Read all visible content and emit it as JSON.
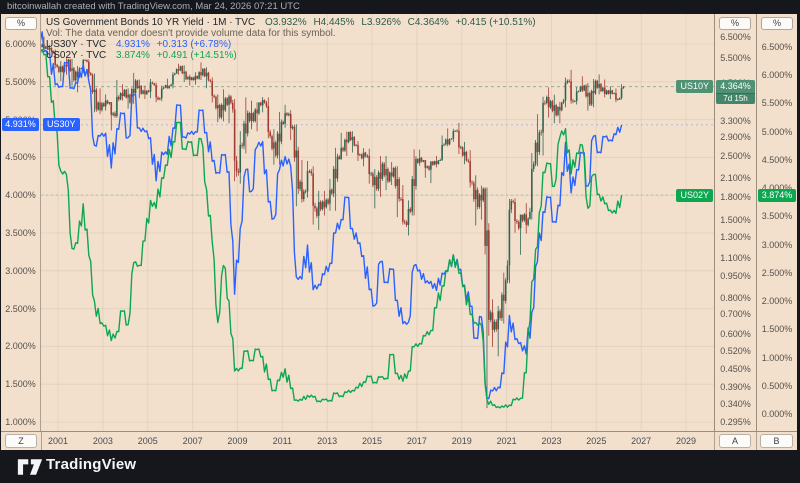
{
  "top_bar": {
    "attribution": "bitcoinwallah created with TradingView.com, Mar 24, 2026 07:21 UTC"
  },
  "legend": {
    "main": {
      "title_full": "US Government Bonds 10 YR Yield · 1M · TVC",
      "open": "O3.932%",
      "high": "H4.445%",
      "low": "L3.926%",
      "close": "C4.364%",
      "change": "+0.415 (+10.51%)"
    },
    "vol_note": "Vol: The data vendor doesn't provide volume data for this symbol.",
    "us30y": {
      "symbol_full": "US30Y · TVC",
      "value": "4.931%",
      "change": "+0.313 (+6.78%)"
    },
    "us02y": {
      "symbol_full": "US02Y · TVC",
      "value": "3.874%",
      "change": "+0.491 (+14.51%)"
    }
  },
  "floating_labels": {
    "us30y": "US30Y",
    "us10y": "US10Y",
    "us02y": "US02Y"
  },
  "axes": {
    "left": {
      "unit_button": "%",
      "badge": {
        "text": "4.931%",
        "value": 4.931
      },
      "ticks": [
        {
          "t": "6.000%",
          "v": 6.0
        },
        {
          "t": "5.500%",
          "v": 5.5
        },
        {
          "t": "5.000%",
          "v": 5.0
        },
        {
          "t": "4.500%",
          "v": 4.5
        },
        {
          "t": "4.000%",
          "v": 4.0
        },
        {
          "t": "3.500%",
          "v": 3.5
        },
        {
          "t": "3.000%",
          "v": 3.0
        },
        {
          "t": "2.500%",
          "v": 2.5
        },
        {
          "t": "2.000%",
          "v": 2.0
        },
        {
          "t": "1.500%",
          "v": 1.5
        },
        {
          "t": "1.000%",
          "v": 1.0
        }
      ]
    },
    "inner_right": {
      "unit_button": "%",
      "badge": {
        "text": "4.364%",
        "value": 4.364,
        "countdown": "7d 15h"
      },
      "ticks": [
        {
          "t": "6.500%",
          "v": 6.5
        },
        {
          "t": "5.500%",
          "v": 5.5
        },
        {
          "t": "4.500%",
          "v": 4.5
        },
        {
          "t": "3.900%",
          "v": 3.9
        },
        {
          "t": "3.300%",
          "v": 3.3
        },
        {
          "t": "2.900%",
          "v": 2.9
        },
        {
          "t": "2.500%",
          "v": 2.5
        },
        {
          "t": "2.100%",
          "v": 2.1
        },
        {
          "t": "1.800%",
          "v": 1.8
        },
        {
          "t": "1.500%",
          "v": 1.5
        },
        {
          "t": "1.300%",
          "v": 1.3
        },
        {
          "t": "1.100%",
          "v": 1.1
        },
        {
          "t": "0.950%",
          "v": 0.95
        },
        {
          "t": "0.800%",
          "v": 0.8
        },
        {
          "t": "0.700%",
          "v": 0.7
        },
        {
          "t": "0.600%",
          "v": 0.6
        },
        {
          "t": "0.520%",
          "v": 0.52
        },
        {
          "t": "0.450%",
          "v": 0.45
        },
        {
          "t": "0.390%",
          "v": 0.39
        },
        {
          "t": "0.340%",
          "v": 0.34
        },
        {
          "t": "0.295%",
          "v": 0.295
        }
      ]
    },
    "outer_right": {
      "unit_button": "%",
      "badge": {
        "text": "3.874%",
        "value": 3.874
      },
      "ticks": [
        {
          "t": "6.500%",
          "v": 6.5
        },
        {
          "t": "6.000%",
          "v": 6.0
        },
        {
          "t": "5.500%",
          "v": 5.5
        },
        {
          "t": "5.000%",
          "v": 5.0
        },
        {
          "t": "4.500%",
          "v": 4.5
        },
        {
          "t": "4.000%",
          "v": 4.0
        },
        {
          "t": "3.500%",
          "v": 3.5
        },
        {
          "t": "3.000%",
          "v": 3.0
        },
        {
          "t": "2.500%",
          "v": 2.5
        },
        {
          "t": "2.000%",
          "v": 2.0
        },
        {
          "t": "1.500%",
          "v": 1.5
        },
        {
          "t": "1.000%",
          "v": 1.0
        },
        {
          "t": "0.500%",
          "v": 0.5
        },
        {
          "t": "0.000%",
          "v": 0.0
        }
      ]
    },
    "time": {
      "button_left": "Z",
      "button_a": "A",
      "button_b": "B",
      "years": [
        2001,
        2003,
        2005,
        2007,
        2009,
        2011,
        2013,
        2015,
        2017,
        2019,
        2021,
        2023,
        2025,
        2027,
        2029
      ]
    }
  },
  "footer": {
    "brand": "TradingView"
  },
  "colors": {
    "background": "#f2e0cd",
    "frame": "#15171c",
    "blue": "#2962ff",
    "green": "#0ca750",
    "sage": "#4e9173",
    "candle_up": "#2e6450",
    "candle_down": "#a23b32",
    "grid": "rgba(60,45,25,0.07)"
  },
  "chart_data": {
    "type": "mixed",
    "title": "US Government Bonds 10 YR Yield",
    "x_axis": {
      "start": 2000,
      "end": 2030,
      "tick_years": [
        2001,
        2003,
        2005,
        2007,
        2009,
        2011,
        2013,
        2015,
        2017,
        2019,
        2021,
        2023,
        2025,
        2027,
        2029
      ]
    },
    "x_start": 2000.125,
    "x_step": 0.25,
    "scales": {
      "left_linear": {
        "series": "US30Y",
        "min": 0.88,
        "max": 6.29,
        "last_price": 4.931
      },
      "right_log_A": {
        "series": "US10Y",
        "min": 0.274,
        "max": 7.33,
        "last_price": 4.364,
        "bar_countdown": "7d 15h"
      },
      "right_linear_B": {
        "series": "US02Y",
        "min": -0.3,
        "max": 6.94,
        "last_price": 3.874
      }
    },
    "series": [
      {
        "name": "US10Y",
        "type": "candlestick",
        "scale": "right_log_A",
        "interval": "quarterly-approx",
        "last_bar": {
          "open": 3.932,
          "high": 4.445,
          "low": 3.926,
          "close": 4.364,
          "change": "+0.415 (+10.51%)"
        },
        "ohlc": [
          [
            6.45,
            6.6,
            6.26,
            6.0
          ],
          [
            6.0,
            6.52,
            5.9,
            6.03
          ],
          [
            6.03,
            6.1,
            5.64,
            5.8
          ],
          [
            5.8,
            5.88,
            5.05,
            5.12
          ],
          [
            5.12,
            5.35,
            4.56,
            4.92
          ],
          [
            4.92,
            5.48,
            4.8,
            5.42
          ],
          [
            5.42,
            5.45,
            4.4,
            4.59
          ],
          [
            4.59,
            5.15,
            4.17,
            5.05
          ],
          [
            5.05,
            5.45,
            4.85,
            5.4
          ],
          [
            5.4,
            5.43,
            4.7,
            4.8
          ],
          [
            4.8,
            4.85,
            3.55,
            3.63
          ],
          [
            3.63,
            4.3,
            3.5,
            3.82
          ],
          [
            3.82,
            4.1,
            3.6,
            3.81
          ],
          [
            3.81,
            3.85,
            3.07,
            3.52
          ],
          [
            3.52,
            4.6,
            3.4,
            3.94
          ],
          [
            3.94,
            4.45,
            3.9,
            4.25
          ],
          [
            4.25,
            4.3,
            3.65,
            3.84
          ],
          [
            3.84,
            4.87,
            3.8,
            4.58
          ],
          [
            4.58,
            4.62,
            3.98,
            4.12
          ],
          [
            4.12,
            4.4,
            3.95,
            4.22
          ],
          [
            4.22,
            4.64,
            3.98,
            4.48
          ],
          [
            4.48,
            4.5,
            3.85,
            3.94
          ],
          [
            3.94,
            4.4,
            3.88,
            4.33
          ],
          [
            4.33,
            4.65,
            4.29,
            4.39
          ],
          [
            4.39,
            4.9,
            4.3,
            4.85
          ],
          [
            4.85,
            5.24,
            4.8,
            5.14
          ],
          [
            5.14,
            5.18,
            4.53,
            4.63
          ],
          [
            4.63,
            4.8,
            4.4,
            4.7
          ],
          [
            4.7,
            4.9,
            4.43,
            4.65
          ],
          [
            4.65,
            5.3,
            4.6,
            5.03
          ],
          [
            5.03,
            5.1,
            4.31,
            4.59
          ],
          [
            4.59,
            4.7,
            3.84,
            4.02
          ],
          [
            4.02,
            4.1,
            3.28,
            3.41
          ],
          [
            3.41,
            4.27,
            3.3,
            3.97
          ],
          [
            3.97,
            4.1,
            3.25,
            3.83
          ],
          [
            3.83,
            3.95,
            2.04,
            2.21
          ],
          [
            2.21,
            3.05,
            2.0,
            2.71
          ],
          [
            2.71,
            4.0,
            2.55,
            3.53
          ],
          [
            3.53,
            3.9,
            3.1,
            3.31
          ],
          [
            3.31,
            3.85,
            3.05,
            3.84
          ],
          [
            3.84,
            4.01,
            3.55,
            3.83
          ],
          [
            3.83,
            4.0,
            2.88,
            2.93
          ],
          [
            2.93,
            3.1,
            2.33,
            2.51
          ],
          [
            2.51,
            3.56,
            2.33,
            3.29
          ],
          [
            3.29,
            3.77,
            3.14,
            3.47
          ],
          [
            3.47,
            3.61,
            2.84,
            3.16
          ],
          [
            3.16,
            3.22,
            1.67,
            1.92
          ],
          [
            1.92,
            2.42,
            1.72,
            1.88
          ],
          [
            1.88,
            2.4,
            1.79,
            2.21
          ],
          [
            2.21,
            2.3,
            1.44,
            1.64
          ],
          [
            1.64,
            1.89,
            1.38,
            1.63
          ],
          [
            1.63,
            1.89,
            1.55,
            1.76
          ],
          [
            1.76,
            2.08,
            1.61,
            1.85
          ],
          [
            1.85,
            2.67,
            1.61,
            2.49
          ],
          [
            2.49,
            3.01,
            2.47,
            2.61
          ],
          [
            2.61,
            3.04,
            2.5,
            3.03
          ],
          [
            3.03,
            3.05,
            2.57,
            2.72
          ],
          [
            2.72,
            2.82,
            2.4,
            2.53
          ],
          [
            2.53,
            2.66,
            2.3,
            2.49
          ],
          [
            2.49,
            2.65,
            2.0,
            2.17
          ],
          [
            2.17,
            2.25,
            1.64,
            1.92
          ],
          [
            1.92,
            2.5,
            1.8,
            2.35
          ],
          [
            2.35,
            2.5,
            1.9,
            2.04
          ],
          [
            2.04,
            2.38,
            1.98,
            2.27
          ],
          [
            2.27,
            2.3,
            1.53,
            1.77
          ],
          [
            1.77,
            1.98,
            1.44,
            1.47
          ],
          [
            1.47,
            1.75,
            1.32,
            1.6
          ],
          [
            1.6,
            2.64,
            1.55,
            2.44
          ],
          [
            2.44,
            2.63,
            2.31,
            2.39
          ],
          [
            2.39,
            2.42,
            2.1,
            2.3
          ],
          [
            2.3,
            2.4,
            2.01,
            2.33
          ],
          [
            2.33,
            2.5,
            2.28,
            2.41
          ],
          [
            2.41,
            2.95,
            2.4,
            2.74
          ],
          [
            2.74,
            3.12,
            2.7,
            2.86
          ],
          [
            2.86,
            3.11,
            2.8,
            3.06
          ],
          [
            3.06,
            3.26,
            2.54,
            2.68
          ],
          [
            2.68,
            2.8,
            2.34,
            2.41
          ],
          [
            2.41,
            2.62,
            1.94,
            2.01
          ],
          [
            2.01,
            2.14,
            1.43,
            1.66
          ],
          [
            1.66,
            1.97,
            1.5,
            1.92
          ],
          [
            1.92,
            1.94,
            0.33,
            0.67
          ],
          [
            0.67,
            0.79,
            0.54,
            0.66
          ],
          [
            0.66,
            0.75,
            0.5,
            0.68
          ],
          [
            0.68,
            0.98,
            0.65,
            0.92
          ],
          [
            0.92,
            1.77,
            0.9,
            1.74
          ],
          [
            1.74,
            1.78,
            1.35,
            1.47
          ],
          [
            1.47,
            1.56,
            1.13,
            1.49
          ],
          [
            1.49,
            1.71,
            1.34,
            1.51
          ],
          [
            1.51,
            2.56,
            1.5,
            2.34
          ],
          [
            2.34,
            3.5,
            2.3,
            3.02
          ],
          [
            3.02,
            4.02,
            2.51,
            3.83
          ],
          [
            3.83,
            4.34,
            3.4,
            3.88
          ],
          [
            3.88,
            4.09,
            3.25,
            3.47
          ],
          [
            3.47,
            3.86,
            3.25,
            3.84
          ],
          [
            3.84,
            4.69,
            3.7,
            4.57
          ],
          [
            4.57,
            4.99,
            3.8,
            3.88
          ],
          [
            3.88,
            4.35,
            3.78,
            4.2
          ],
          [
            4.2,
            4.74,
            4.18,
            4.4
          ],
          [
            4.4,
            4.49,
            3.6,
            3.78
          ],
          [
            3.78,
            4.64,
            3.7,
            4.57
          ],
          [
            4.57,
            4.81,
            4.1,
            4.21
          ],
          [
            4.21,
            4.62,
            4.0,
            4.23
          ],
          [
            4.23,
            4.37,
            3.95,
            4.12
          ],
          [
            4.12,
            4.3,
            3.85,
            3.95
          ],
          [
            3.93,
            4.45,
            3.93,
            4.36
          ]
        ]
      },
      {
        "name": "US30Y",
        "type": "line",
        "scale": "left_linear",
        "last_value": 4.931,
        "change": "+0.313 (+6.78%)",
        "values": [
          6.29,
          5.9,
          5.88,
          5.46,
          5.44,
          5.75,
          5.42,
          5.48,
          5.73,
          5.51,
          4.66,
          4.78,
          4.82,
          4.36,
          4.88,
          5.08,
          4.76,
          5.33,
          4.89,
          4.84,
          4.76,
          4.19,
          4.57,
          4.54,
          4.89,
          5.19,
          4.77,
          4.81,
          4.84,
          5.12,
          4.83,
          4.45,
          4.3,
          4.53,
          4.31,
          2.69,
          3.56,
          4.34,
          4.05,
          4.64,
          4.71,
          3.91,
          3.69,
          4.34,
          4.51,
          4.38,
          2.92,
          2.89,
          3.34,
          2.75,
          2.82,
          2.95,
          3.1,
          3.5,
          3.68,
          3.97,
          3.56,
          3.36,
          3.2,
          2.75,
          2.54,
          3.12,
          2.85,
          3.02,
          2.61,
          2.3,
          2.32,
          3.07,
          3.01,
          2.84,
          2.86,
          2.74,
          2.97,
          2.99,
          3.21,
          3.01,
          2.81,
          2.53,
          2.11,
          2.39,
          1.32,
          1.41,
          1.46,
          1.64,
          2.41,
          2.09,
          2.05,
          1.9,
          2.45,
          3.12,
          3.78,
          3.97,
          3.65,
          3.86,
          4.7,
          4.03,
          4.34,
          4.56,
          4.12,
          4.78,
          4.57,
          4.77,
          4.73,
          4.8,
          4.93
        ]
      },
      {
        "name": "US02Y",
        "type": "line",
        "scale": "right_linear_B",
        "last_value": 3.874,
        "change": "+0.491 (+14.51%)",
        "values": [
          6.48,
          6.36,
          5.97,
          5.09,
          4.3,
          4.24,
          2.93,
          3.02,
          3.72,
          2.81,
          2.0,
          1.6,
          1.57,
          1.3,
          1.46,
          1.82,
          1.58,
          2.68,
          2.63,
          3.06,
          3.78,
          3.64,
          4.18,
          4.4,
          4.82,
          5.16,
          4.69,
          4.81,
          4.58,
          4.87,
          3.97,
          3.05,
          1.62,
          2.63,
          2.0,
          0.76,
          0.81,
          1.11,
          0.95,
          1.14,
          1.02,
          0.61,
          0.42,
          0.59,
          0.8,
          0.45,
          0.25,
          0.24,
          0.33,
          0.3,
          0.23,
          0.25,
          0.24,
          0.36,
          0.32,
          0.38,
          0.42,
          0.46,
          0.57,
          0.66,
          0.56,
          0.65,
          0.63,
          1.05,
          0.72,
          0.58,
          0.76,
          1.19,
          1.25,
          1.38,
          1.48,
          1.88,
          2.27,
          2.53,
          2.82,
          2.49,
          2.26,
          1.76,
          1.62,
          1.57,
          0.25,
          0.15,
          0.13,
          0.12,
          0.16,
          0.25,
          0.28,
          0.73,
          2.34,
          2.96,
          4.28,
          4.43,
          4.03,
          4.9,
          5.05,
          4.25,
          4.62,
          4.76,
          3.64,
          4.24,
          3.89,
          3.72,
          3.61,
          3.55,
          3.87
        ]
      }
    ]
  }
}
